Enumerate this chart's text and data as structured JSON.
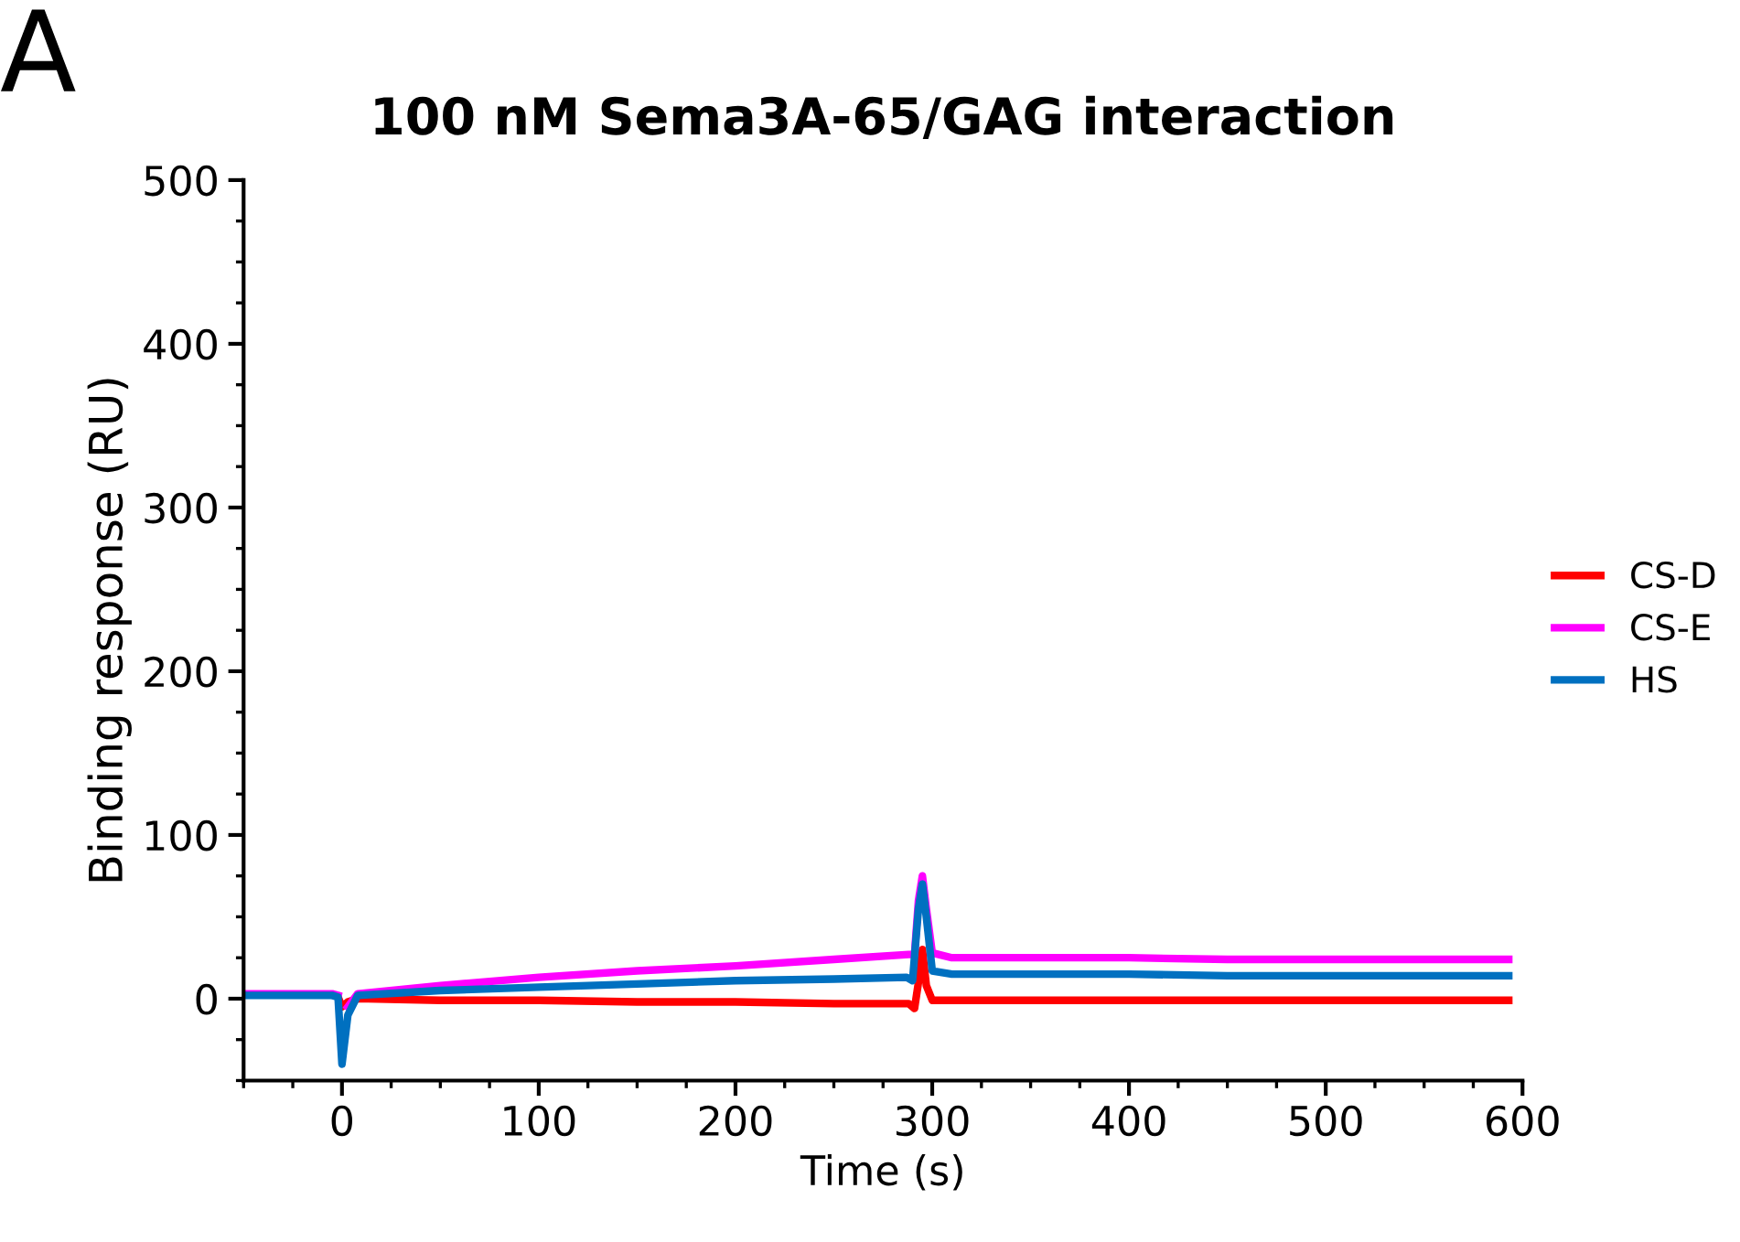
{
  "chart_data": {
    "type": "line",
    "title": "100 nM Sema3A-65/GAG interaction",
    "xlabel": "Time (s)",
    "ylabel": "Binding response (RU)",
    "annotations": [
      "A"
    ],
    "xlim": [
      -50,
      600
    ],
    "ylim": [
      -50,
      500
    ],
    "xticks": [
      0,
      100,
      200,
      300,
      400,
      500,
      600
    ],
    "yticks": [
      0,
      100,
      200,
      300,
      400,
      500
    ],
    "grid": false,
    "legend": "right",
    "marker": "none",
    "line_style": "solid",
    "series": [
      {
        "name": "CS-D",
        "color": "#ff0000",
        "x": [
          -2,
          0,
          3,
          8,
          50,
          100,
          150,
          200,
          250,
          288,
          291,
          293,
          295,
          297,
          300,
          310,
          350,
          400,
          450,
          500,
          593
        ],
        "values": [
          1,
          -5,
          -2,
          0,
          -1,
          -1,
          -2,
          -2,
          -3,
          -3,
          -6,
          10,
          30,
          8,
          -1,
          -1,
          -1,
          -1,
          -1,
          -1,
          -1
        ]
      },
      {
        "name": "CS-E",
        "color": "#ff00ff",
        "x": [
          -50,
          -5,
          -2,
          0,
          3,
          8,
          50,
          100,
          150,
          200,
          250,
          288,
          291,
          293,
          295,
          297,
          300,
          310,
          350,
          400,
          450,
          500,
          593
        ],
        "values": [
          3,
          3,
          2,
          null,
          -5,
          3,
          8,
          13,
          17,
          20,
          24,
          27,
          27,
          60,
          75,
          55,
          28,
          25,
          25,
          25,
          24,
          24,
          24
        ]
      },
      {
        "name": "HS",
        "color": "#0070c0",
        "x": [
          -50,
          -5,
          -2,
          0,
          3,
          8,
          50,
          100,
          150,
          200,
          250,
          287,
          290,
          293,
          295,
          297,
          300,
          310,
          350,
          400,
          450,
          500,
          593
        ],
        "values": [
          2,
          2,
          1,
          -40,
          -10,
          2,
          5,
          7,
          9,
          11,
          12,
          13,
          11,
          55,
          70,
          50,
          17,
          15,
          15,
          15,
          14,
          14,
          14
        ]
      }
    ]
  }
}
